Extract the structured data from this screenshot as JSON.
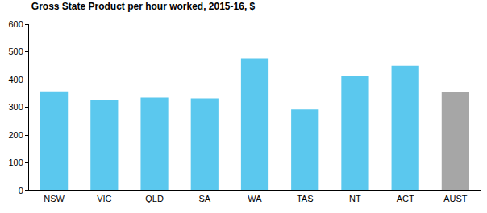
{
  "chart_data": {
    "type": "bar",
    "title": "Gross State Product per hour worked, 2015-16, $",
    "categories": [
      "NSW",
      "VIC",
      "QLD",
      "SA",
      "WA",
      "TAS",
      "NT",
      "ACT",
      "AUST"
    ],
    "values": [
      357,
      327,
      335,
      332,
      477,
      292,
      414,
      450,
      356
    ],
    "colors": [
      "#5BC8EE",
      "#5BC8EE",
      "#5BC8EE",
      "#5BC8EE",
      "#5BC8EE",
      "#5BC8EE",
      "#5BC8EE",
      "#5BC8EE",
      "#A6A6A6"
    ],
    "ylim": [
      0,
      600
    ],
    "yticks": [
      0,
      100,
      200,
      300,
      400,
      500,
      600
    ],
    "grid": false
  }
}
